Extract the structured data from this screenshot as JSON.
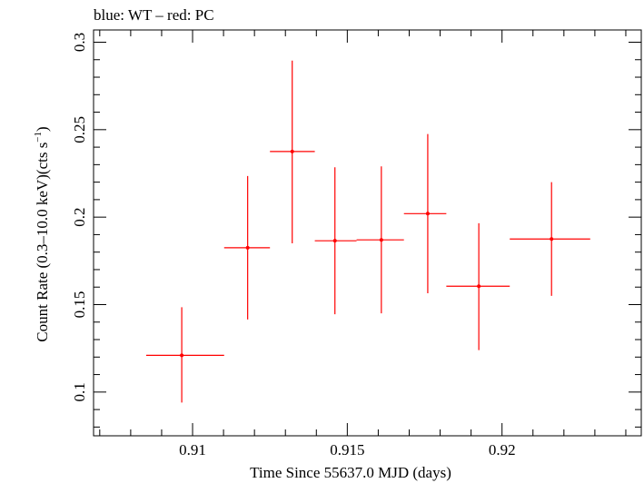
{
  "chart_data": {
    "type": "scatter",
    "title": "blue: WT – red: PC",
    "xlabel": "Time Since 55637.0 MJD (days)",
    "ylabel_main": "Count Rate (0.3–10.0 keV)(cts s",
    "ylabel_sup": "−1",
    "ylabel_close": ")",
    "xlim": [
      0.9068,
      0.9245
    ],
    "ylim": [
      0.075,
      0.307
    ],
    "x_ticks": [
      0.91,
      0.915,
      0.92
    ],
    "x_tick_labels": [
      "0.91",
      "0.915",
      "0.92"
    ],
    "y_ticks": [
      0.1,
      0.15,
      0.2,
      0.25,
      0.3
    ],
    "y_tick_labels": [
      "0.1",
      "0.15",
      "0.2",
      "0.25",
      "0.3"
    ],
    "grid": false,
    "legend": "none",
    "series": [
      {
        "name": "WT",
        "color": "#0000ff",
        "points": []
      },
      {
        "name": "PC",
        "color": "#ff0000",
        "points": [
          {
            "x": 0.90965,
            "xlo": 0.9085,
            "xhi": 0.91102,
            "y": 0.121,
            "ylo": 0.094,
            "yhi": 0.1485
          },
          {
            "x": 0.91178,
            "xlo": 0.91102,
            "xhi": 0.9125,
            "y": 0.1825,
            "ylo": 0.1415,
            "yhi": 0.2235
          },
          {
            "x": 0.91322,
            "xlo": 0.9125,
            "xhi": 0.91395,
            "y": 0.2375,
            "ylo": 0.185,
            "yhi": 0.2895
          },
          {
            "x": 0.9146,
            "xlo": 0.91395,
            "xhi": 0.9153,
            "y": 0.1865,
            "ylo": 0.1445,
            "yhi": 0.2285
          },
          {
            "x": 0.9161,
            "xlo": 0.9153,
            "xhi": 0.91683,
            "y": 0.187,
            "ylo": 0.145,
            "yhi": 0.229
          },
          {
            "x": 0.9176,
            "xlo": 0.91683,
            "xhi": 0.9182,
            "y": 0.202,
            "ylo": 0.1565,
            "yhi": 0.2475
          },
          {
            "x": 0.91925,
            "xlo": 0.9182,
            "xhi": 0.92025,
            "y": 0.1605,
            "ylo": 0.124,
            "yhi": 0.1965
          },
          {
            "x": 0.9216,
            "xlo": 0.92025,
            "xhi": 0.92285,
            "y": 0.1875,
            "ylo": 0.155,
            "yhi": 0.22
          }
        ]
      }
    ]
  }
}
